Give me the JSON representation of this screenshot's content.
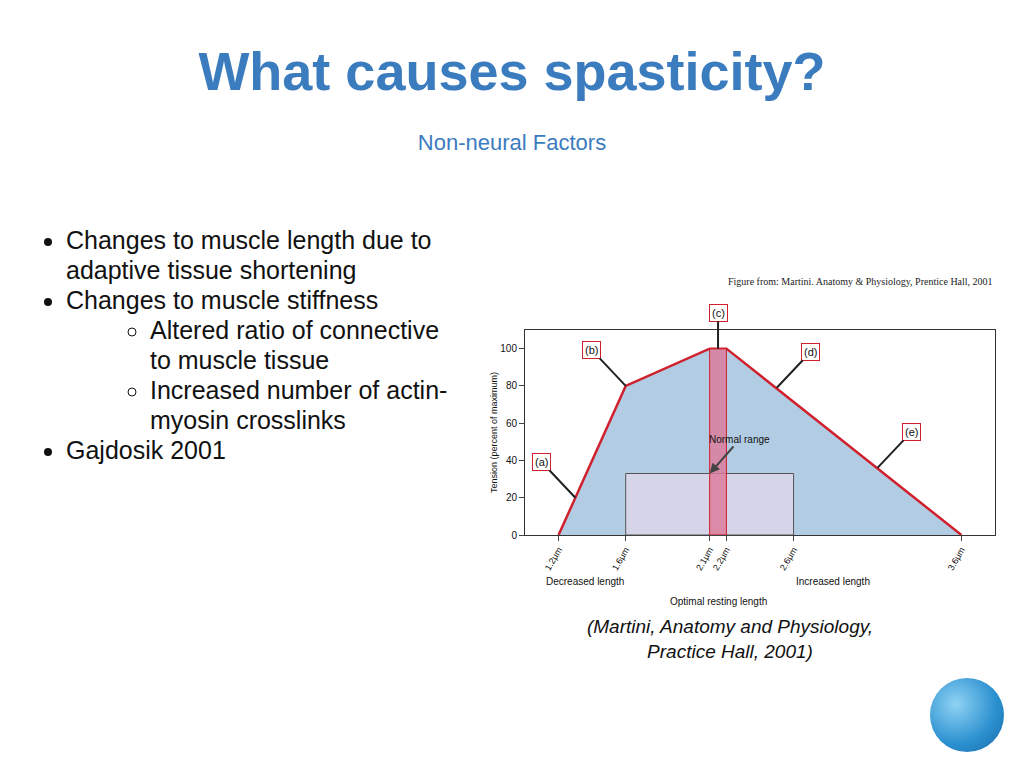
{
  "slide": {
    "title": "What causes spasticity?",
    "subtitle": "Non-neural Factors",
    "bullets": [
      {
        "text": "Changes to muscle length due to adaptive tissue shortening"
      },
      {
        "text": "Changes to muscle stiffness",
        "sub": [
          "Altered ratio of connective to muscle tissue",
          "Increased number of actin-myosin crosslinks"
        ]
      },
      {
        "text": "Gajdosik 2001"
      }
    ],
    "caption": "(Martini, Anatomy and Physiology, Practice Hall, 2001)"
  },
  "chart_data": {
    "type": "area",
    "source_note": "Figure from: Martini. Anatomy & Physiology, Prentice Hall, 2001",
    "x": [
      1.2,
      1.6,
      2.1,
      2.2,
      3.6
    ],
    "values": [
      0,
      80,
      100,
      100,
      0
    ],
    "color": "#d0202e",
    "ylabel": "Tension (percent of maximum)",
    "xlim": [
      1.0,
      3.8
    ],
    "ylim": [
      0,
      110
    ],
    "xticks": [
      {
        "value": 1.2,
        "label": "1.2μm"
      },
      {
        "value": 1.6,
        "label": "1.6μm"
      },
      {
        "value": 2.1,
        "label": "2.1μm"
      },
      {
        "value": 2.2,
        "label": "2.2μm"
      },
      {
        "value": 2.6,
        "label": "2.6μm"
      },
      {
        "value": 3.6,
        "label": "3.6μm"
      }
    ],
    "yticks": [
      0,
      20,
      40,
      60,
      80,
      100
    ],
    "optimal_range": {
      "x": [
        2.1,
        2.2
      ],
      "label": "Optimal resting length"
    },
    "normal_range": {
      "x": [
        1.6,
        2.6
      ],
      "label": "Normal range"
    },
    "axis_notes": {
      "left": "Decreased length",
      "right": "Increased length"
    },
    "annotations": [
      {
        "text": "(a)",
        "x": 1.3,
        "y": 20
      },
      {
        "text": "(b)",
        "x": 1.6,
        "y": 80
      },
      {
        "text": "(c)",
        "x": 2.15,
        "y": 100
      },
      {
        "text": "(d)",
        "x": 2.5,
        "y": 79
      },
      {
        "text": "(e)",
        "x": 3.1,
        "y": 36
      }
    ]
  }
}
